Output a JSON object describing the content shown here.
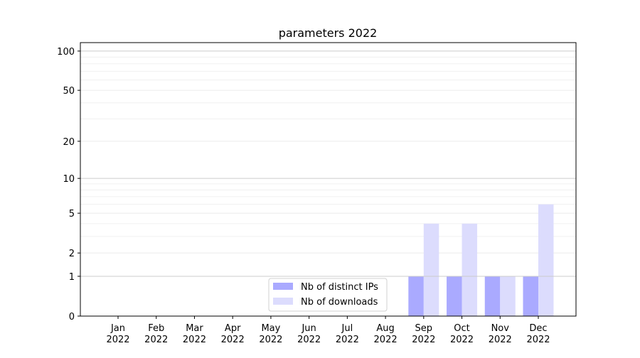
{
  "chart_data": {
    "type": "bar",
    "title": "parameters 2022",
    "xlabel": "",
    "ylabel": "",
    "y_scale": "log(1+y)",
    "ylim": [
      0,
      116
    ],
    "y_ticks": [
      0,
      1,
      2,
      5,
      10,
      20,
      50,
      100
    ],
    "grid": true,
    "legend_position": "lower-center",
    "categories": [
      [
        "Jan",
        "2022"
      ],
      [
        "Feb",
        "2022"
      ],
      [
        "Mar",
        "2022"
      ],
      [
        "Apr",
        "2022"
      ],
      [
        "May",
        "2022"
      ],
      [
        "Jun",
        "2022"
      ],
      [
        "Jul",
        "2022"
      ],
      [
        "Aug",
        "2022"
      ],
      [
        "Sep",
        "2022"
      ],
      [
        "Oct",
        "2022"
      ],
      [
        "Nov",
        "2022"
      ],
      [
        "Dec",
        "2022"
      ]
    ],
    "series": [
      {
        "name": "Nb of distinct IPs",
        "color": "#aaaaff",
        "values": [
          0,
          0,
          0,
          0,
          0,
          0,
          0,
          0,
          1,
          1,
          1,
          1
        ]
      },
      {
        "name": "Nb of downloads",
        "color": "#dcdcfd",
        "values": [
          0,
          0,
          0,
          0,
          0,
          0,
          0,
          0,
          4,
          4,
          1,
          6
        ]
      }
    ]
  }
}
